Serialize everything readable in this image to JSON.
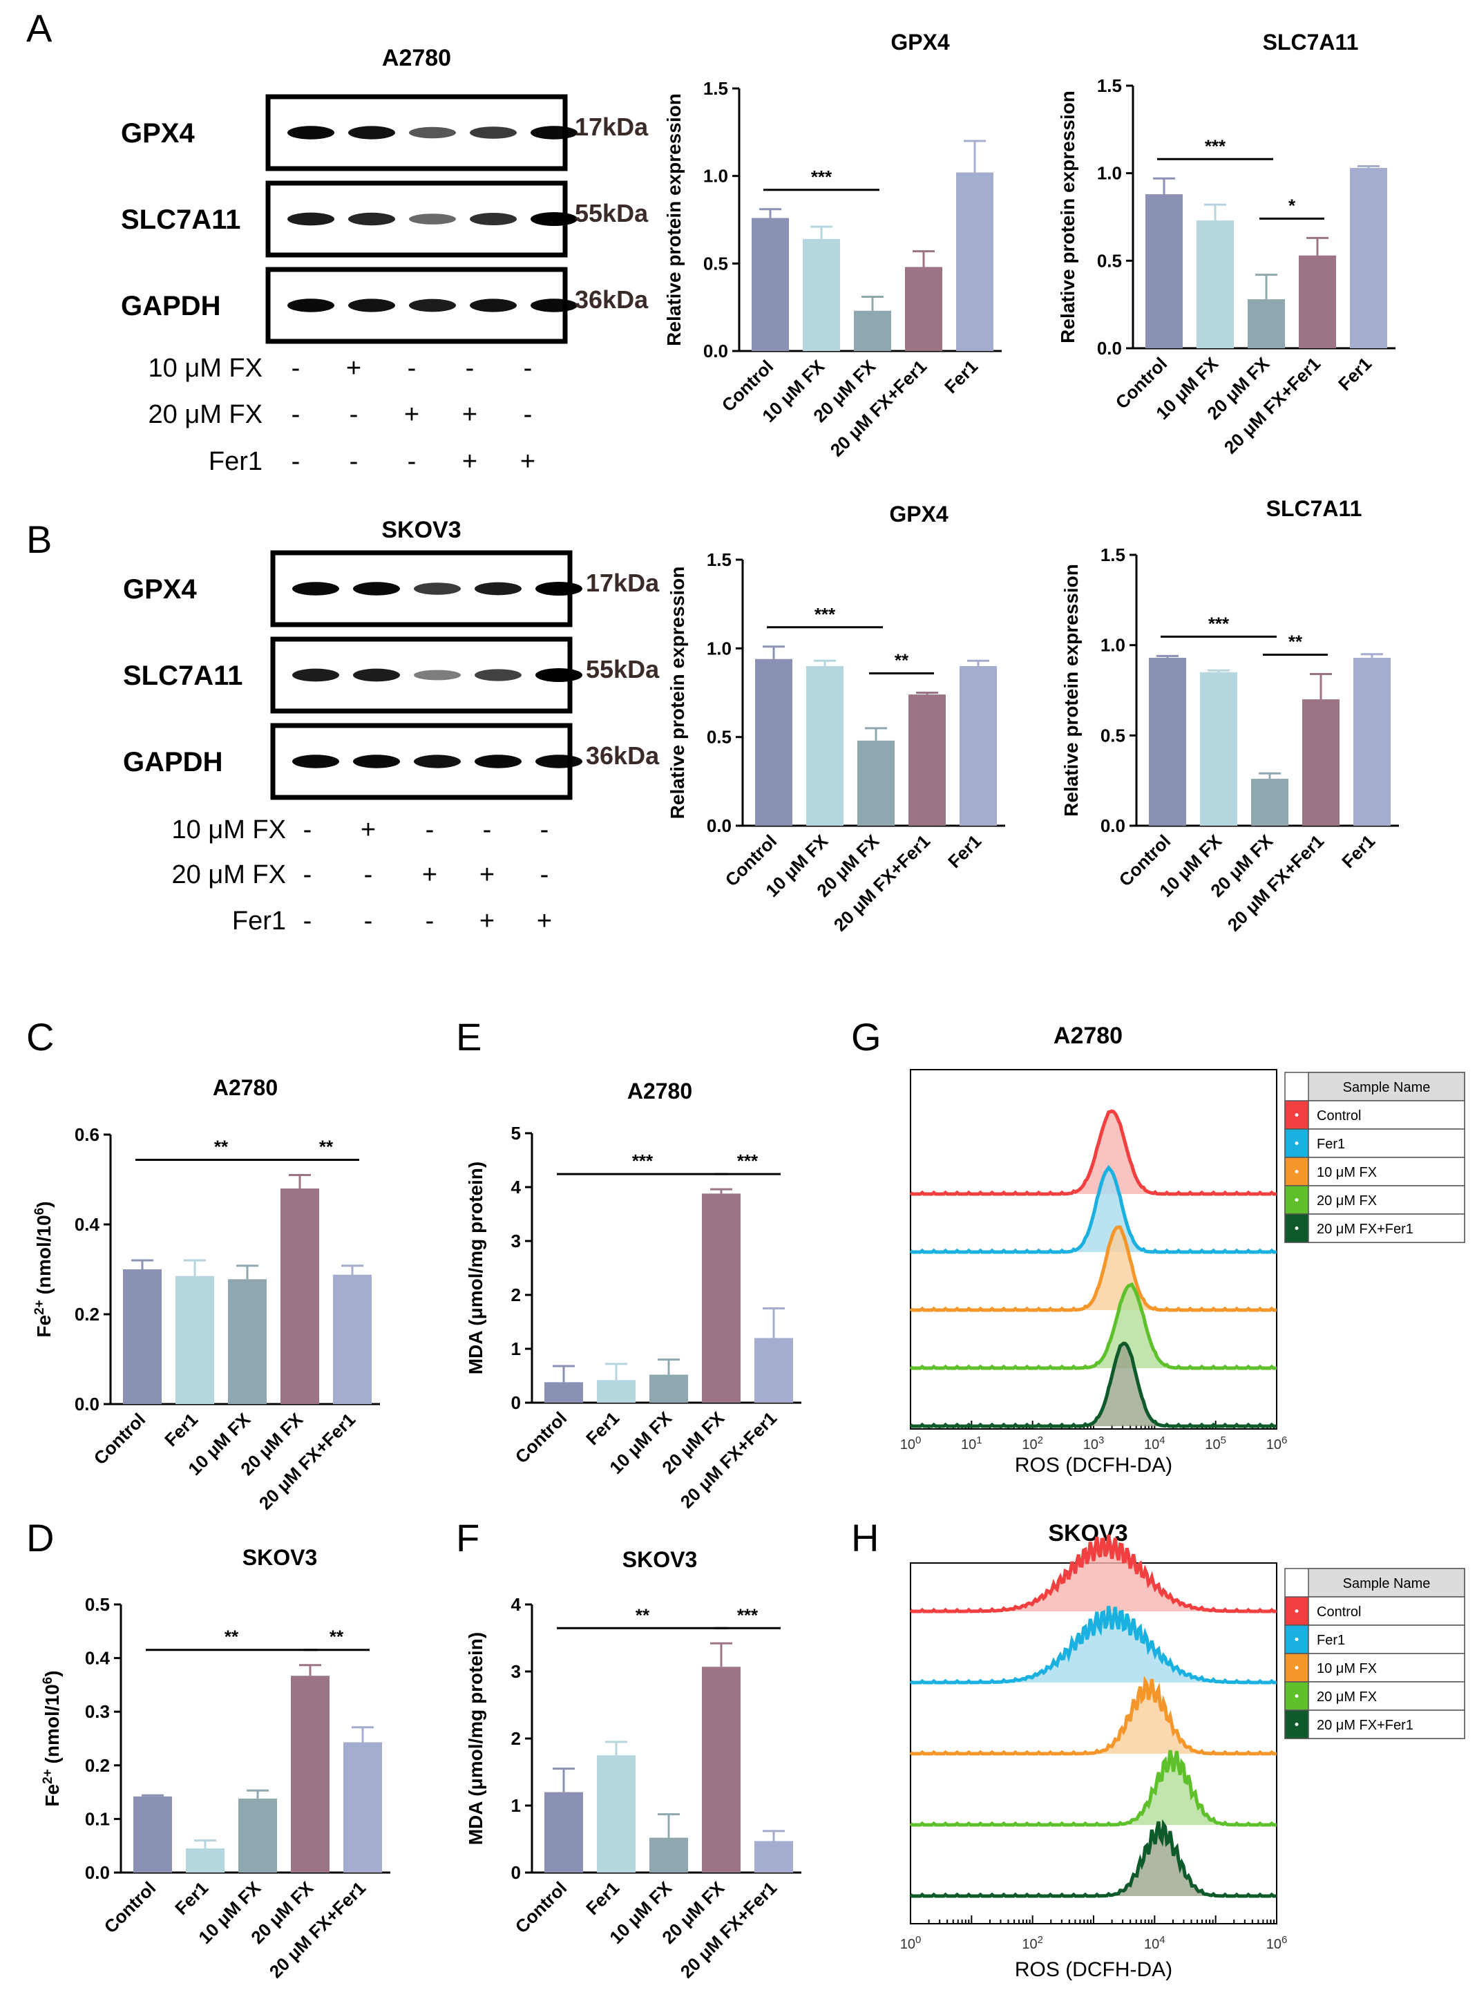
{
  "panel_letters": [
    "A",
    "B",
    "C",
    "D",
    "E",
    "F",
    "G",
    "H"
  ],
  "blots": [
    {
      "panel": "A",
      "title": "A2780",
      "bands": [
        {
          "name": "GPX4",
          "kda": "17kDa",
          "intensities": [
            0.95,
            0.9,
            0.55,
            0.7,
            0.95
          ]
        },
        {
          "name": "SLC7A11",
          "kda": "55kDa",
          "intensities": [
            0.85,
            0.8,
            0.45,
            0.75,
            1.0
          ]
        },
        {
          "name": "GAPDH",
          "kda": "36kDa",
          "intensities": [
            0.95,
            0.9,
            0.85,
            0.9,
            0.95
          ]
        }
      ],
      "treatments": [
        {
          "label": "10 μM FX",
          "marks": [
            "-",
            "+",
            "-",
            "-",
            "-"
          ]
        },
        {
          "label": "20 μM FX",
          "marks": [
            "-",
            "-",
            "+",
            "+",
            "-"
          ]
        },
        {
          "label": "Fer1",
          "marks": [
            "-",
            "-",
            "-",
            "+",
            "+"
          ]
        }
      ]
    },
    {
      "panel": "B",
      "title": "SKOV3",
      "bands": [
        {
          "name": "GPX4",
          "kda": "17kDa",
          "intensities": [
            0.95,
            0.95,
            0.7,
            0.85,
            1.0
          ]
        },
        {
          "name": "SLC7A11",
          "kda": "55kDa",
          "intensities": [
            0.85,
            0.85,
            0.35,
            0.65,
            1.0
          ]
        },
        {
          "name": "GAPDH",
          "kda": "36kDa",
          "intensities": [
            0.95,
            0.95,
            0.9,
            0.95,
            0.95
          ]
        }
      ],
      "treatments": [
        {
          "label": "10 μM FX",
          "marks": [
            "-",
            "+",
            "-",
            "-",
            "-"
          ]
        },
        {
          "label": "20 μM FX",
          "marks": [
            "-",
            "-",
            "+",
            "+",
            "-"
          ]
        },
        {
          "label": "Fer1",
          "marks": [
            "-",
            "-",
            "-",
            "+",
            "+"
          ]
        }
      ]
    }
  ],
  "chart_data": [
    {
      "id": "a-gpx4",
      "type": "bar",
      "title": "GPX4",
      "ylabel": "Relative protein expression",
      "categories": [
        "Control",
        "10 μM FX",
        "20 μM FX",
        "20 μM FX+Fer1",
        "Fer1"
      ],
      "values": [
        0.76,
        0.64,
        0.23,
        0.48,
        1.02
      ],
      "errors": [
        0.05,
        0.07,
        0.08,
        0.09,
        0.18
      ],
      "ylim": [
        0,
        1.5
      ],
      "yticks": [
        "0.0",
        "0.5",
        "1.0",
        "1.5"
      ],
      "ytick_values": [
        0,
        0.5,
        1.0,
        1.5
      ],
      "colors": [
        "#8b90b5",
        "#b5d6de",
        "#8fa8b0",
        "#9c7486",
        "#a4acd0"
      ],
      "significance": [
        {
          "from": 0,
          "to": 2,
          "label": "***"
        }
      ]
    },
    {
      "id": "a-slc",
      "type": "bar",
      "title": "SLC7A11",
      "ylabel": "Relative protein expression",
      "categories": [
        "Control",
        "10 μM FX",
        "20 μM FX",
        "20 μM FX+Fer1",
        "Fer1"
      ],
      "values": [
        0.88,
        0.73,
        0.28,
        0.53,
        1.03
      ],
      "errors": [
        0.09,
        0.09,
        0.14,
        0.1,
        0.01
      ],
      "ylim": [
        0,
        1.5
      ],
      "yticks": [
        "0.0",
        "0.5",
        "1.0",
        "1.5"
      ],
      "ytick_values": [
        0,
        0.5,
        1.0,
        1.5
      ],
      "colors": [
        "#8b90b5",
        "#b5d6de",
        "#8fa8b0",
        "#9c7486",
        "#a4acd0"
      ],
      "significance": [
        {
          "from": 0,
          "to": 2,
          "label": "***"
        },
        {
          "from": 2,
          "to": 3,
          "label": "*"
        }
      ]
    },
    {
      "id": "b-gpx4",
      "type": "bar",
      "title": "GPX4",
      "ylabel": "Relative protein expression",
      "categories": [
        "Control",
        "10 μM FX",
        "20 μM FX",
        "20 μM FX+Fer1",
        "Fer1"
      ],
      "values": [
        0.94,
        0.9,
        0.48,
        0.74,
        0.9
      ],
      "errors": [
        0.07,
        0.03,
        0.07,
        0.01,
        0.03
      ],
      "ylim": [
        0,
        1.5
      ],
      "yticks": [
        "0.0",
        "0.5",
        "1.0",
        "1.5"
      ],
      "ytick_values": [
        0,
        0.5,
        1.0,
        1.5
      ],
      "colors": [
        "#8b90b5",
        "#b5d6de",
        "#8fa8b0",
        "#9c7486",
        "#a4acd0"
      ],
      "significance": [
        {
          "from": 0,
          "to": 2,
          "label": "***"
        },
        {
          "from": 2,
          "to": 3,
          "label": "**"
        }
      ]
    },
    {
      "id": "b-slc",
      "type": "bar",
      "title": "SLC7A11",
      "ylabel": "Relative protein expression",
      "categories": [
        "Control",
        "10 μM FX",
        "20 μM FX",
        "20 μM FX+Fer1",
        "Fer1"
      ],
      "values": [
        0.93,
        0.85,
        0.26,
        0.7,
        0.93
      ],
      "errors": [
        0.01,
        0.01,
        0.03,
        0.14,
        0.02
      ],
      "ylim": [
        0,
        1.5
      ],
      "yticks": [
        "0.0",
        "0.5",
        "1.0",
        "1.5"
      ],
      "ytick_values": [
        0,
        0.5,
        1.0,
        1.5
      ],
      "colors": [
        "#8b90b5",
        "#b5d6de",
        "#8fa8b0",
        "#9c7486",
        "#a4acd0"
      ],
      "significance": [
        {
          "from": 0,
          "to": 2,
          "label": "***"
        },
        {
          "from": 2,
          "to": 3,
          "label": "**"
        }
      ]
    },
    {
      "id": "c-fe",
      "type": "bar",
      "title": "A2780",
      "ylabel": "Fe2+ (nmol/106)",
      "ylabel_parts": [
        "Fe",
        "2+",
        " (nmol/10",
        "6",
        ")"
      ],
      "categories": [
        "Control",
        "Fer1",
        "10 μM FX",
        "20 μM FX",
        "20 μM FX+Fer1"
      ],
      "values": [
        0.3,
        0.285,
        0.278,
        0.48,
        0.288
      ],
      "errors": [
        0.02,
        0.035,
        0.03,
        0.03,
        0.02
      ],
      "ylim": [
        0,
        0.6
      ],
      "yticks": [
        "0.0",
        "0.2",
        "0.4",
        "0.6"
      ],
      "ytick_values": [
        0,
        0.2,
        0.4,
        0.6
      ],
      "colors": [
        "#8b90b5",
        "#b5d6de",
        "#8fa8b0",
        "#9c7486",
        "#a4acd0"
      ],
      "significance": [
        {
          "from": 0,
          "to": 3,
          "label": "**"
        },
        {
          "from": 3,
          "to": 4,
          "label": "**"
        }
      ]
    },
    {
      "id": "d-fe",
      "type": "bar",
      "title": "SKOV3",
      "ylabel": "Fe2+ (nmol/106)",
      "ylabel_parts": [
        "Fe",
        "2+",
        " (nmol/10",
        "6",
        ")"
      ],
      "categories": [
        "Control",
        "Fer1",
        "10 μM FX",
        "20 μM FX",
        "20 μM FX+Fer1"
      ],
      "values": [
        0.142,
        0.045,
        0.138,
        0.367,
        0.243
      ],
      "errors": [
        0.002,
        0.015,
        0.015,
        0.02,
        0.028
      ],
      "ylim": [
        0,
        0.5
      ],
      "yticks": [
        "0.0",
        "0.1",
        "0.2",
        "0.3",
        "0.4",
        "0.5"
      ],
      "ytick_values": [
        0,
        0.1,
        0.2,
        0.3,
        0.4,
        0.5
      ],
      "colors": [
        "#8b90b5",
        "#b5d6de",
        "#8fa8b0",
        "#9c7486",
        "#a4acd0"
      ],
      "significance": [
        {
          "from": 0,
          "to": 3,
          "label": "**"
        },
        {
          "from": 3,
          "to": 4,
          "label": "**"
        }
      ]
    },
    {
      "id": "e-mda",
      "type": "bar",
      "title": "A2780",
      "ylabel": "MDA (μmol/mg protein)",
      "categories": [
        "Control",
        "Fer1",
        "10 μM FX",
        "20 μM FX",
        "20 μM FX+Fer1"
      ],
      "values": [
        0.38,
        0.42,
        0.52,
        3.88,
        1.2
      ],
      "errors": [
        0.3,
        0.3,
        0.28,
        0.08,
        0.55
      ],
      "ylim": [
        0,
        5
      ],
      "yticks": [
        "0",
        "1",
        "2",
        "3",
        "4",
        "5"
      ],
      "ytick_values": [
        0,
        1,
        2,
        3,
        4,
        5
      ],
      "colors": [
        "#8b90b5",
        "#b5d6de",
        "#8fa8b0",
        "#9c7486",
        "#a4acd0"
      ],
      "significance": [
        {
          "from": 0,
          "to": 3,
          "label": "***"
        },
        {
          "from": 3,
          "to": 4,
          "label": "***"
        }
      ]
    },
    {
      "id": "f-mda",
      "type": "bar",
      "title": "SKOV3",
      "ylabel": "MDA (μmol/mg protein)",
      "categories": [
        "Control",
        "Fer1",
        "10 μM FX",
        "20 μM FX",
        "20 μM FX+Fer1"
      ],
      "values": [
        1.2,
        1.75,
        0.52,
        3.07,
        0.47
      ],
      "errors": [
        0.35,
        0.2,
        0.35,
        0.35,
        0.15
      ],
      "ylim": [
        0,
        4
      ],
      "yticks": [
        "0",
        "1",
        "2",
        "3",
        "4"
      ],
      "ytick_values": [
        0,
        1,
        2,
        3,
        4
      ],
      "colors": [
        "#8b90b5",
        "#b5d6de",
        "#8fa8b0",
        "#9c7486",
        "#a4acd0"
      ],
      "significance": [
        {
          "from": 0,
          "to": 3,
          "label": "**"
        },
        {
          "from": 3,
          "to": 4,
          "label": "***"
        }
      ]
    },
    {
      "id": "g-ros",
      "type": "histogram-overlay",
      "title": "A2780",
      "xlabel": "ROS (DCFH-DA)",
      "x_log_range": [
        0,
        6
      ],
      "xtick_exponents": [
        "0",
        "1",
        "2",
        "3",
        "4",
        "5",
        "6"
      ],
      "legend_header": "Sample Name",
      "series": [
        {
          "name": "Control",
          "color": "#f24040",
          "fill": "#f7b4b0",
          "peak_log": 3.3,
          "width": 0.22
        },
        {
          "name": "Fer1",
          "color": "#1ab0e0",
          "fill": "#a9dcef",
          "peak_log": 3.25,
          "width": 0.2
        },
        {
          "name": "10 μM FX",
          "color": "#f5962a",
          "fill": "#f9cf9c",
          "peak_log": 3.4,
          "width": 0.2
        },
        {
          "name": "20 μM FX",
          "color": "#5ec02a",
          "fill": "#b3df9a",
          "peak_log": 3.6,
          "width": 0.22
        },
        {
          "name": "20 μM FX+Fer1",
          "color": "#0f5a2a",
          "fill": "#9aa58a",
          "peak_log": 3.5,
          "width": 0.2
        }
      ]
    },
    {
      "id": "h-ros",
      "type": "histogram-overlay",
      "title": "SKOV3",
      "xlabel": "ROS (DCFH-DA)",
      "x_log_range": [
        0,
        6
      ],
      "xtick_exponents": [
        "0",
        "2",
        "4",
        "6"
      ],
      "legend_header": "Sample Name",
      "series": [
        {
          "name": "Control",
          "color": "#f24040",
          "fill": "#f7b4b0",
          "peak_log": 3.2,
          "width": 0.6
        },
        {
          "name": "Fer1",
          "color": "#1ab0e0",
          "fill": "#a9dcef",
          "peak_log": 3.3,
          "width": 0.6
        },
        {
          "name": "10 μM FX",
          "color": "#f5962a",
          "fill": "#f9cf9c",
          "peak_log": 3.9,
          "width": 0.3
        },
        {
          "name": "20 μM FX",
          "color": "#5ec02a",
          "fill": "#b3df9a",
          "peak_log": 4.3,
          "width": 0.28
        },
        {
          "name": "20 μM FX+Fer1",
          "color": "#0f5a2a",
          "fill": "#9aa58a",
          "peak_log": 4.1,
          "width": 0.28
        }
      ]
    }
  ]
}
